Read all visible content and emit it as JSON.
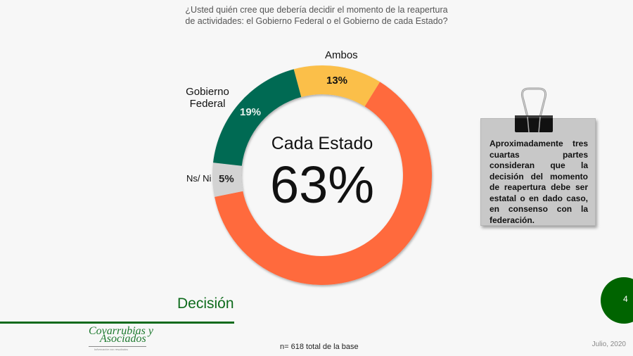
{
  "question": {
    "line1": "¿Usted quién cree que debería decidir el momento de la reapertura",
    "line2": "de actividades: el Gobierno Federal o el Gobierno de cada Estado?"
  },
  "chart_data": {
    "type": "pie",
    "variant": "donut",
    "title": "¿Usted quién cree que debería decidir el momento de la reapertura de actividades: el Gobierno Federal o el Gobierno de cada Estado?",
    "categories": [
      "Ambos",
      "Cada Estado",
      "Ns/ Ni",
      "Gobierno Federal"
    ],
    "values": [
      13,
      63,
      5,
      19
    ],
    "unit": "%",
    "colors": [
      "#fbbf4a",
      "#ff6a3d",
      "#d3d3d3",
      "#036a52"
    ],
    "start_angle_deg": -15,
    "direction": "clockwise",
    "center_label": "Cada Estado",
    "center_value": "63%",
    "legend": "none (direct labels)"
  },
  "labels": {
    "ambos": {
      "name": "Ambos",
      "pct": "13%"
    },
    "federal": {
      "name_line1": "Gobierno",
      "name_line2": "Federal",
      "pct": "19%"
    },
    "nsni": {
      "name": "Ns/ Ni",
      "pct": "5%"
    },
    "estado": {
      "name": "Cada Estado",
      "pct": "63%"
    }
  },
  "note": {
    "text": "Aproximadamente tres cuartas partes consideran que la decisión del momento de reapertura debe ser estatal o en dado caso, en consenso con la federación."
  },
  "footer": {
    "section_title": "Decisión",
    "logo_line1": "Covarrubias y",
    "logo_line2": "Asociados",
    "logo_tagline": "Información con resultados",
    "base": "n= 618 total de la base",
    "date": "Julio, 2020",
    "page_number": "4"
  },
  "colors": {
    "brand_green": "#0e6b1c",
    "badge_green": "#006400",
    "background": "#f7f7f7"
  }
}
